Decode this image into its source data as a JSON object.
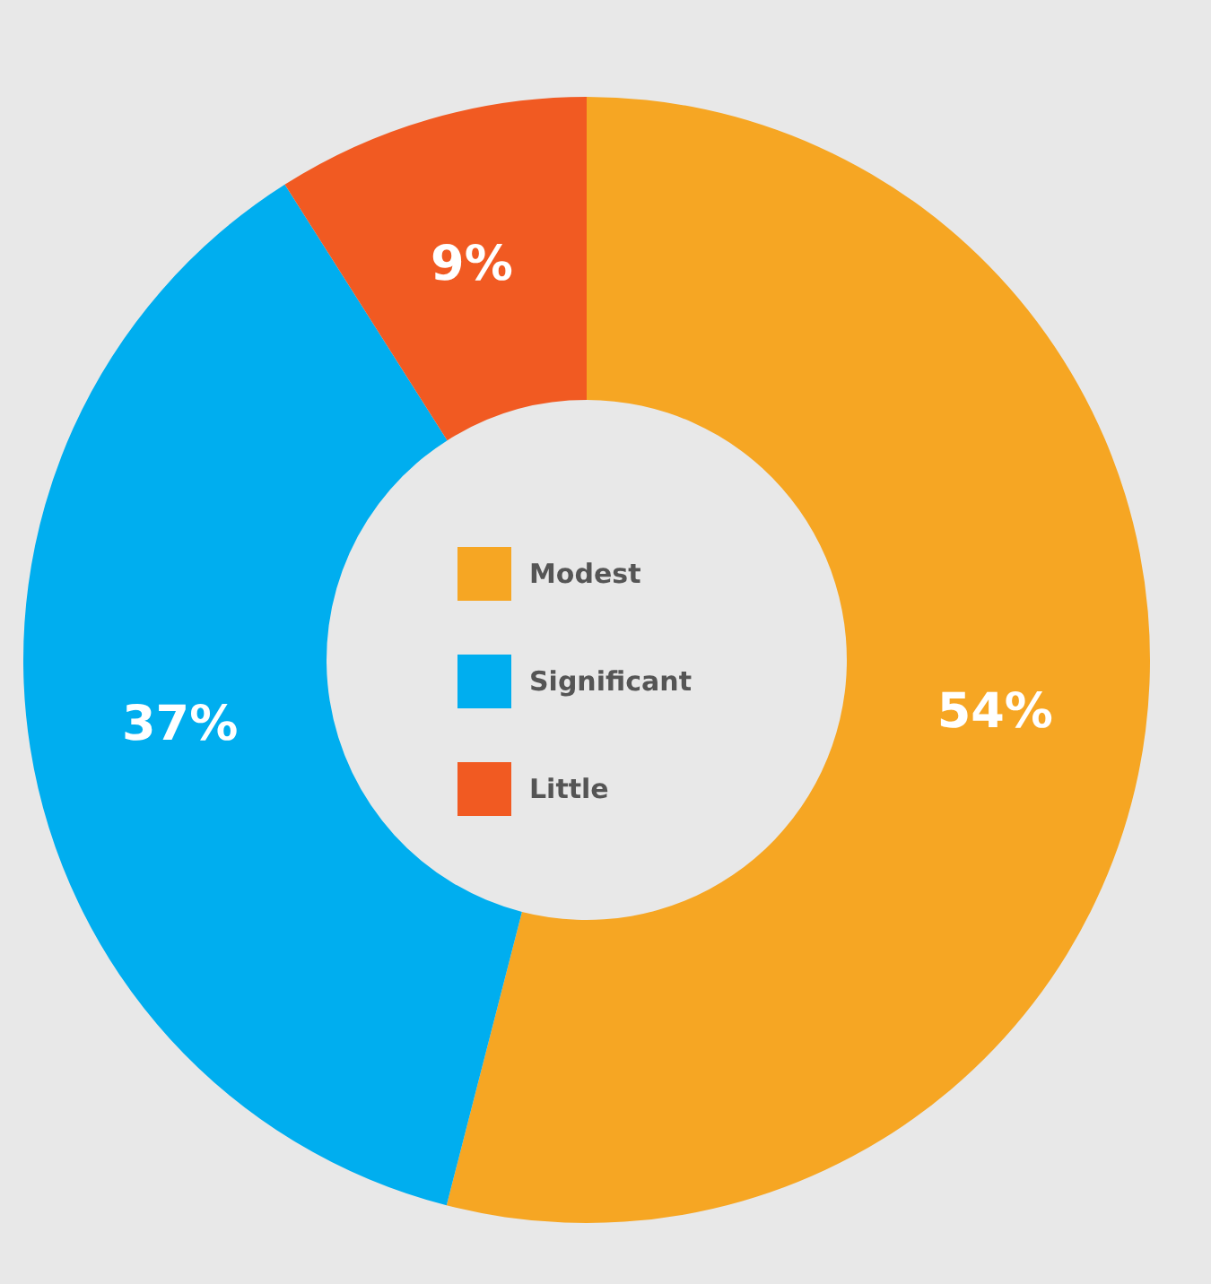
{
  "chart_data": {
    "type": "donut",
    "categories": [
      "Modest",
      "Significant",
      "Little"
    ],
    "values": [
      54,
      37,
      9
    ],
    "colors": [
      "#f6a623",
      "#00aeef",
      "#f15a22"
    ],
    "value_labels": [
      "54%",
      "37%",
      "9%"
    ],
    "legend": "center"
  }
}
